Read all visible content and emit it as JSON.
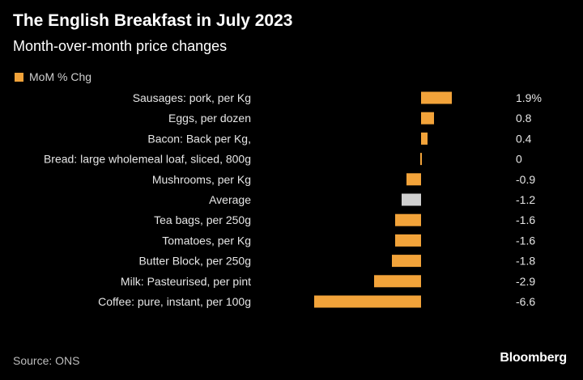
{
  "header": {
    "title": "The English Breakfast in July 2023",
    "subtitle": "Month-over-month price changes"
  },
  "legend": {
    "label": "MoM % Chg"
  },
  "colors": {
    "bar": "#f2a33a",
    "average_bar": "#cfcfcf",
    "background": "#000000",
    "text": "#ffffff"
  },
  "chart_data": {
    "type": "bar",
    "orientation": "horizontal",
    "categories": [
      "Sausages: pork, per Kg",
      "Eggs, per dozen",
      "Bacon: Back per Kg,",
      "Bread: large wholemeal loaf, sliced, 800g",
      "Mushrooms, per Kg",
      "Average",
      "Tea bags, per 250g",
      "Tomatoes, per Kg",
      "Butter Block, per 250g",
      "Milk: Pasteurised, per pint",
      "Coffee: pure, instant, per 100g"
    ],
    "values": [
      1.9,
      0.8,
      0.4,
      0,
      -0.9,
      -1.2,
      -1.6,
      -1.6,
      -1.8,
      -2.9,
      -6.6
    ],
    "value_labels": [
      "1.9%",
      "0.8",
      "0.4",
      "0",
      "-0.9",
      "-1.2",
      "-1.6",
      "-1.6",
      "-1.8",
      "-2.9",
      "-6.6"
    ],
    "highlight_category": "Average",
    "xlim": [
      -6.6,
      1.9
    ],
    "grid": false,
    "legend_position": "top-left"
  },
  "footer": {
    "source": "Source: ONS",
    "brand": "Bloomberg"
  }
}
